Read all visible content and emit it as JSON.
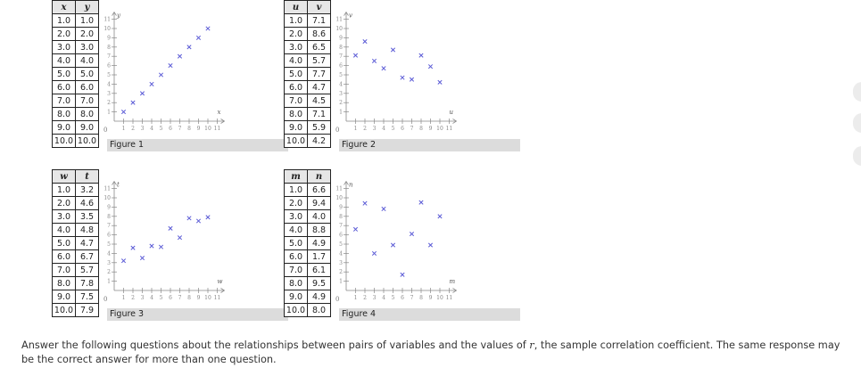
{
  "chart_data": [
    {
      "type": "scatter",
      "xname": "x",
      "yname": "y",
      "x": [
        1.0,
        2.0,
        3.0,
        4.0,
        5.0,
        6.0,
        7.0,
        8.0,
        9.0,
        10.0
      ],
      "y": [
        1.0,
        2.0,
        3.0,
        4.0,
        5.0,
        6.0,
        7.0,
        8.0,
        9.0,
        10.0
      ],
      "xlim": [
        0,
        11
      ],
      "ylim": [
        0,
        11
      ],
      "xticks": [
        "1",
        "2",
        "3",
        "4",
        "5",
        "6",
        "7",
        "8",
        "9",
        "10",
        "11"
      ],
      "yticks": [
        "1",
        "2",
        "3",
        "4",
        "5",
        "6",
        "7",
        "8",
        "9",
        "10",
        "11"
      ],
      "origin_label": "0",
      "caption": "Figure 1"
    },
    {
      "type": "scatter",
      "xname": "u",
      "yname": "v",
      "x": [
        1.0,
        2.0,
        3.0,
        4.0,
        5.0,
        6.0,
        7.0,
        8.0,
        9.0,
        10.0
      ],
      "y": [
        7.1,
        8.6,
        6.5,
        5.7,
        7.7,
        4.7,
        4.5,
        7.1,
        5.9,
        4.2
      ],
      "xlim": [
        0,
        11
      ],
      "ylim": [
        0,
        11
      ],
      "xticks": [
        "1",
        "2",
        "3",
        "4",
        "5",
        "6",
        "7",
        "8",
        "9",
        "10",
        "11"
      ],
      "yticks": [
        "1",
        "2",
        "3",
        "4",
        "5",
        "6",
        "7",
        "8",
        "9",
        "10",
        "11"
      ],
      "origin_label": "0",
      "caption": "Figure 2"
    },
    {
      "type": "scatter",
      "xname": "w",
      "yname": "t",
      "x": [
        1.0,
        2.0,
        3.0,
        4.0,
        5.0,
        6.0,
        7.0,
        8.0,
        9.0,
        10.0
      ],
      "y": [
        3.2,
        4.6,
        3.5,
        4.8,
        4.7,
        6.7,
        5.7,
        7.8,
        7.5,
        7.9
      ],
      "xlim": [
        0,
        11
      ],
      "ylim": [
        0,
        11
      ],
      "xticks": [
        "1",
        "2",
        "3",
        "4",
        "5",
        "6",
        "7",
        "8",
        "9",
        "10",
        "11"
      ],
      "yticks": [
        "1",
        "2",
        "3",
        "4",
        "5",
        "6",
        "7",
        "8",
        "9",
        "10",
        "11"
      ],
      "origin_label": "0",
      "caption": "Figure 3"
    },
    {
      "type": "scatter",
      "xname": "m",
      "yname": "n",
      "x": [
        1.0,
        2.0,
        3.0,
        4.0,
        5.0,
        6.0,
        7.0,
        8.0,
        9.0,
        10.0
      ],
      "y": [
        6.6,
        9.4,
        4.0,
        8.8,
        4.9,
        1.7,
        6.1,
        9.5,
        4.9,
        8.0
      ],
      "xlim": [
        0,
        11
      ],
      "ylim": [
        0,
        11
      ],
      "xticks": [
        "1",
        "2",
        "3",
        "4",
        "5",
        "6",
        "7",
        "8",
        "9",
        "10",
        "11"
      ],
      "yticks": [
        "1",
        "2",
        "3",
        "4",
        "5",
        "6",
        "7",
        "8",
        "9",
        "10",
        "11"
      ],
      "origin_label": "0",
      "caption": "Figure 4"
    }
  ],
  "tables": [
    {
      "headers": [
        "x",
        "y"
      ],
      "rows": [
        [
          "1.0",
          "1.0"
        ],
        [
          "2.0",
          "2.0"
        ],
        [
          "3.0",
          "3.0"
        ],
        [
          "4.0",
          "4.0"
        ],
        [
          "5.0",
          "5.0"
        ],
        [
          "6.0",
          "6.0"
        ],
        [
          "7.0",
          "7.0"
        ],
        [
          "8.0",
          "8.0"
        ],
        [
          "9.0",
          "9.0"
        ],
        [
          "10.0",
          "10.0"
        ]
      ]
    },
    {
      "headers": [
        "u",
        "v"
      ],
      "rows": [
        [
          "1.0",
          "7.1"
        ],
        [
          "2.0",
          "8.6"
        ],
        [
          "3.0",
          "6.5"
        ],
        [
          "4.0",
          "5.7"
        ],
        [
          "5.0",
          "7.7"
        ],
        [
          "6.0",
          "4.7"
        ],
        [
          "7.0",
          "4.5"
        ],
        [
          "8.0",
          "7.1"
        ],
        [
          "9.0",
          "5.9"
        ],
        [
          "10.0",
          "4.2"
        ]
      ]
    },
    {
      "headers": [
        "w",
        "t"
      ],
      "rows": [
        [
          "1.0",
          "3.2"
        ],
        [
          "2.0",
          "4.6"
        ],
        [
          "3.0",
          "3.5"
        ],
        [
          "4.0",
          "4.8"
        ],
        [
          "5.0",
          "4.7"
        ],
        [
          "6.0",
          "6.7"
        ],
        [
          "7.0",
          "5.7"
        ],
        [
          "8.0",
          "7.8"
        ],
        [
          "9.0",
          "7.5"
        ],
        [
          "10.0",
          "7.9"
        ]
      ]
    },
    {
      "headers": [
        "m",
        "n"
      ],
      "rows": [
        [
          "1.0",
          "6.6"
        ],
        [
          "2.0",
          "9.4"
        ],
        [
          "3.0",
          "4.0"
        ],
        [
          "4.0",
          "8.8"
        ],
        [
          "5.0",
          "4.9"
        ],
        [
          "6.0",
          "1.7"
        ],
        [
          "7.0",
          "6.1"
        ],
        [
          "8.0",
          "9.5"
        ],
        [
          "9.0",
          "4.9"
        ],
        [
          "10.0",
          "8.0"
        ]
      ]
    }
  ],
  "question": {
    "before": "Answer the following questions about the relationships between pairs of variables and the values of ",
    "symbol": "r",
    "after": ", the sample correlation coefficient. The same response may be the correct answer for more than one question."
  },
  "colors": {
    "marker": "#5b5bd6",
    "axis": "#888888",
    "caption_bg": "#dcdcdc",
    "header_bg": "#e6e6e6"
  }
}
